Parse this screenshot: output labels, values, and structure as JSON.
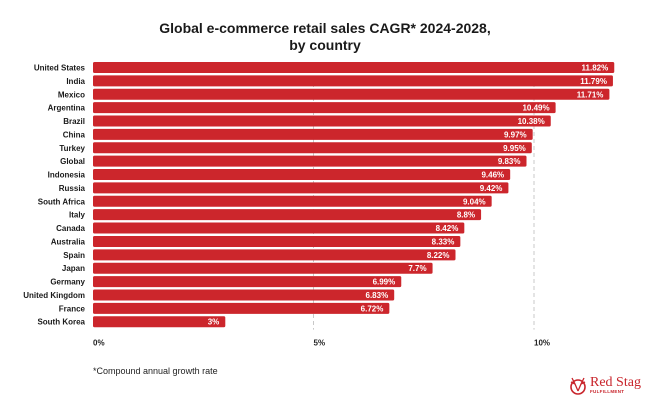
{
  "chart_data": {
    "type": "bar",
    "orientation": "horizontal",
    "title_line1": "Global e-commerce retail sales CAGR* 2024-2028,",
    "title_line2": "by country",
    "categories": [
      "United States",
      "India",
      "Mexico",
      "Argentina",
      "Brazil",
      "China",
      "Turkey",
      "Global",
      "Indonesia",
      "Russia",
      "South Africa",
      "Italy",
      "Canada",
      "Australia",
      "Spain",
      "Japan",
      "Germany",
      "United Kingdom",
      "France",
      "South Korea"
    ],
    "values": [
      11.82,
      11.79,
      11.71,
      10.49,
      10.38,
      9.97,
      9.95,
      9.83,
      9.46,
      9.42,
      9.04,
      8.8,
      8.42,
      8.33,
      8.22,
      7.7,
      6.99,
      6.83,
      6.72,
      3
    ],
    "data_labels": [
      "11.82%",
      "11.79%",
      "11.71%",
      "10.49%",
      "10.38%",
      "9.97%",
      "9.95%",
      "9.83%",
      "9.46%",
      "9.42%",
      "9.04%",
      "8.8%",
      "8.42%",
      "8.33%",
      "8.22%",
      "7.7%",
      "6.99%",
      "6.83%",
      "6.72%",
      "3%"
    ],
    "xticks": [
      0,
      5,
      10
    ],
    "xtick_labels": [
      "0%",
      "5%",
      "10%"
    ],
    "xlim": [
      0,
      12
    ],
    "xlabel": "",
    "ylabel": "",
    "grid": "vertical dashed",
    "bar_color": "#cc262c",
    "footnote": "*Compound annual growth rate"
  },
  "logo": {
    "brand": "Red Stag",
    "sub": "FULFILLMENT"
  }
}
